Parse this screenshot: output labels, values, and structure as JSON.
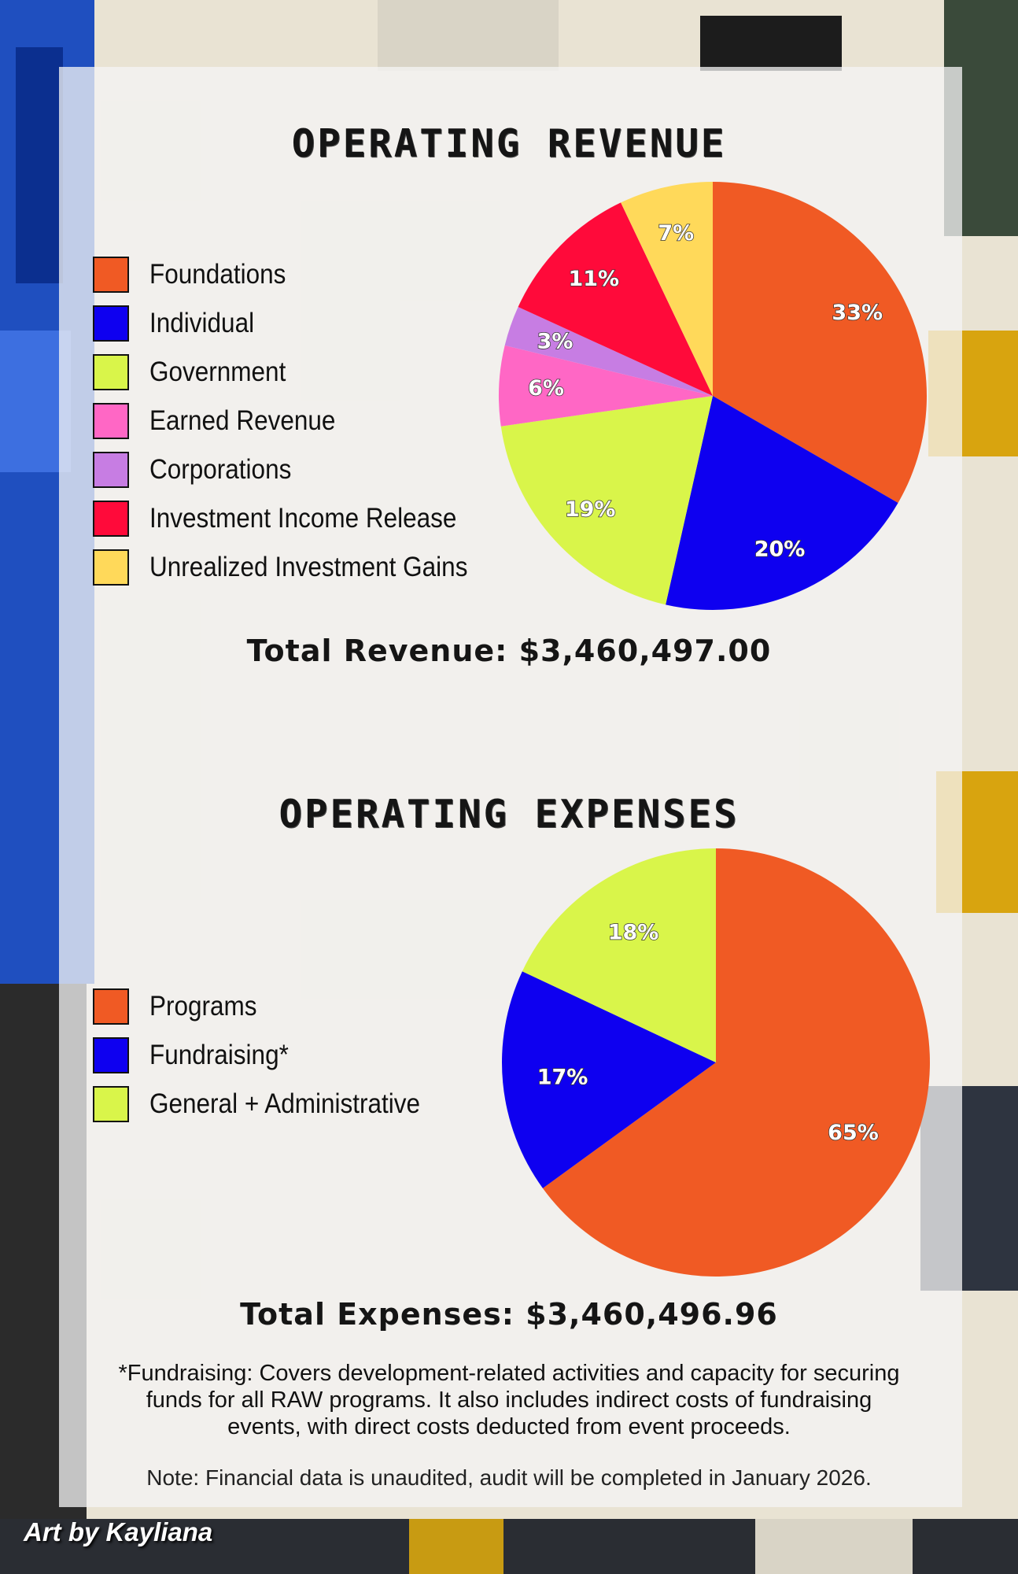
{
  "revenue": {
    "title": "OPERATING REVENUE",
    "total_label": "Total Revenue: $3,460,497.00"
  },
  "expenses": {
    "title": "OPERATING EXPENSES",
    "total_label": "Total Expenses: $3,460,496.96"
  },
  "footnote": "*Fundraising: Covers development-related activities and capacity for securing funds for all RAW programs. It also includes indirect costs of fundraising events, with direct costs deducted from event proceeds.",
  "note": "Note: Financial data is unaudited, audit will be completed in January 2026.",
  "credit": "Art by Kayliana",
  "chart_data": [
    {
      "type": "pie",
      "title": "OPERATING REVENUE",
      "categories": [
        "Foundations",
        "Individual",
        "Government",
        "Earned Revenue",
        "Corporations",
        "Investment Income Release",
        "Unrealized Investment Gains"
      ],
      "values": [
        33,
        20,
        19,
        6,
        3,
        11,
        7
      ],
      "value_labels": [
        "33%",
        "20%",
        "19%",
        "6%",
        "3%",
        "11%",
        "7%"
      ],
      "colors": [
        "#f05a24",
        "#0e00f0",
        "#d9f54a",
        "#ff67c5",
        "#c77de3",
        "#ff0a3a",
        "#ffd95a"
      ],
      "legend_position": "left"
    },
    {
      "type": "pie",
      "title": "OPERATING EXPENSES",
      "categories": [
        "Programs",
        "Fundraising*",
        "General + Administrative"
      ],
      "values": [
        65,
        17,
        18
      ],
      "value_labels": [
        "65%",
        "17%",
        "18%"
      ],
      "colors": [
        "#f05a24",
        "#0e00f0",
        "#d9f54a"
      ],
      "legend_position": "left"
    }
  ]
}
